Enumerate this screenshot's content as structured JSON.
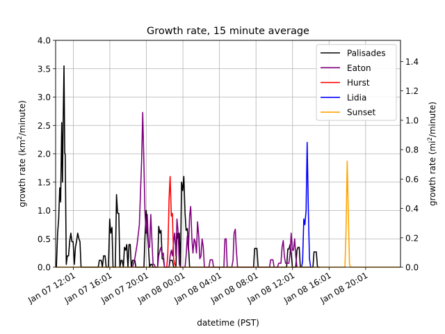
{
  "chart_data": {
    "type": "line",
    "title": "Growth rate, 15 minute average",
    "xlabel": "datetime (PST)",
    "ylabel": "growth rate (km²/minute)",
    "ylabel_right": "growth rate (mi²/minute)",
    "xlim": [
      "2025-01-07T10:05",
      "2025-01-08T23:50"
    ],
    "ylim": [
      0,
      4.0
    ],
    "ylim_right": [
      0,
      1.544
    ],
    "x_ticks": [
      {
        "t": "2025-01-07T12:01",
        "label": "Jan 07 12:01"
      },
      {
        "t": "2025-01-07T16:01",
        "label": "Jan 07 16:01"
      },
      {
        "t": "2025-01-07T20:01",
        "label": "Jan 07 20:01"
      },
      {
        "t": "2025-01-08T00:01",
        "label": "Jan 08 00:01"
      },
      {
        "t": "2025-01-08T04:01",
        "label": "Jan 08 04:01"
      },
      {
        "t": "2025-01-08T08:01",
        "label": "Jan 08 08:01"
      },
      {
        "t": "2025-01-08T12:01",
        "label": "Jan 08 12:01"
      },
      {
        "t": "2025-01-08T16:01",
        "label": "Jan 08 16:01"
      },
      {
        "t": "2025-01-08T20:01",
        "label": "Jan 08 20:01"
      }
    ],
    "y_ticks": [
      {
        "v": 0,
        "label": "0.0"
      },
      {
        "v": 0.5,
        "label": "0.5"
      },
      {
        "v": 1.0,
        "label": "1.0"
      },
      {
        "v": 1.5,
        "label": "1.5"
      },
      {
        "v": 2.0,
        "label": "2.0"
      },
      {
        "v": 2.5,
        "label": "2.5"
      },
      {
        "v": 3.0,
        "label": "3.0"
      },
      {
        "v": 3.5,
        "label": "3.5"
      },
      {
        "v": 4.0,
        "label": "4.0"
      }
    ],
    "y_ticks_right": [
      {
        "v": 0,
        "label": "0.0"
      },
      {
        "v": 0.2,
        "label": "0.2"
      },
      {
        "v": 0.4,
        "label": "0.4"
      },
      {
        "v": 0.6,
        "label": "0.6"
      },
      {
        "v": 0.8,
        "label": "0.8"
      },
      {
        "v": 1.0,
        "label": "1.0"
      },
      {
        "v": 1.2,
        "label": "1.2"
      },
      {
        "v": 1.4,
        "label": "1.4"
      }
    ],
    "grid": true,
    "legend_position": "top-right",
    "series": [
      {
        "name": "Palisades",
        "color": "#000000",
        "points": [
          [
            "2025-01-07T10:10",
            0
          ],
          [
            "2025-01-07T10:18",
            0.6
          ],
          [
            "2025-01-07T10:25",
            0.85
          ],
          [
            "2025-01-07T10:32",
            1.4
          ],
          [
            "2025-01-07T10:38",
            1.15
          ],
          [
            "2025-01-07T10:45",
            2.55
          ],
          [
            "2025-01-07T10:50",
            1.5
          ],
          [
            "2025-01-07T10:55",
            2.65
          ],
          [
            "2025-01-07T11:00",
            3.55
          ],
          [
            "2025-01-07T11:05",
            2.0
          ],
          [
            "2025-01-07T11:08",
            2.0
          ],
          [
            "2025-01-07T11:15",
            0.05
          ],
          [
            "2025-01-07T11:22",
            0.2
          ],
          [
            "2025-01-07T11:30",
            0.2
          ],
          [
            "2025-01-07T11:37",
            0.45
          ],
          [
            "2025-01-07T11:45",
            0.6
          ],
          [
            "2025-01-07T11:52",
            0.45
          ],
          [
            "2025-01-07T12:00",
            0.45
          ],
          [
            "2025-01-07T12:08",
            0.05
          ],
          [
            "2025-01-07T12:15",
            0.35
          ],
          [
            "2025-01-07T12:22",
            0.45
          ],
          [
            "2025-01-07T12:30",
            0.6
          ],
          [
            "2025-01-07T12:38",
            0.5
          ],
          [
            "2025-01-07T12:45",
            0.45
          ],
          [
            "2025-01-07T12:52",
            0
          ],
          [
            "2025-01-07T14:45",
            0
          ],
          [
            "2025-01-07T14:52",
            0.12
          ],
          [
            "2025-01-07T15:05",
            0.12
          ],
          [
            "2025-01-07T15:12",
            0
          ],
          [
            "2025-01-07T15:20",
            0.2
          ],
          [
            "2025-01-07T15:30",
            0.2
          ],
          [
            "2025-01-07T15:37",
            0
          ],
          [
            "2025-01-07T15:52",
            0
          ],
          [
            "2025-01-07T16:00",
            0.85
          ],
          [
            "2025-01-07T16:07",
            0.6
          ],
          [
            "2025-01-07T16:15",
            0.7
          ],
          [
            "2025-01-07T16:22",
            0
          ],
          [
            "2025-01-07T16:37",
            0
          ],
          [
            "2025-01-07T16:45",
            1.28
          ],
          [
            "2025-01-07T16:52",
            0.95
          ],
          [
            "2025-01-07T17:00",
            0.95
          ],
          [
            "2025-01-07T17:07",
            0
          ],
          [
            "2025-01-07T17:15",
            0.12
          ],
          [
            "2025-01-07T17:22",
            0.12
          ],
          [
            "2025-01-07T17:30",
            0
          ],
          [
            "2025-01-07T17:37",
            0.35
          ],
          [
            "2025-01-07T17:45",
            0.3
          ],
          [
            "2025-01-07T17:52",
            0.4
          ],
          [
            "2025-01-07T18:00",
            0
          ],
          [
            "2025-01-07T18:07",
            0.4
          ],
          [
            "2025-01-07T18:15",
            0.4
          ],
          [
            "2025-01-07T18:22",
            0
          ],
          [
            "2025-01-07T18:30",
            0.12
          ],
          [
            "2025-01-07T18:45",
            0.12
          ],
          [
            "2025-01-07T18:52",
            0
          ],
          [
            "2025-01-07T19:45",
            0
          ],
          [
            "2025-01-07T19:52",
            0.55
          ],
          [
            "2025-01-07T20:00",
            1.0
          ],
          [
            "2025-01-07T20:07",
            0.6
          ],
          [
            "2025-01-07T20:15",
            0.35
          ],
          [
            "2025-01-07T20:22",
            0
          ],
          [
            "2025-01-07T20:30",
            0.05
          ],
          [
            "2025-01-07T20:37",
            0.05
          ],
          [
            "2025-01-07T20:45",
            0
          ],
          [
            "2025-01-07T21:15",
            0
          ],
          [
            "2025-01-07T21:22",
            0.72
          ],
          [
            "2025-01-07T21:30",
            0.6
          ],
          [
            "2025-01-07T21:37",
            0.65
          ],
          [
            "2025-01-07T21:45",
            0.15
          ],
          [
            "2025-01-07T21:52",
            0.15
          ],
          [
            "2025-01-07T22:00",
            0
          ],
          [
            "2025-01-07T22:30",
            0
          ],
          [
            "2025-01-07T22:37",
            0.12
          ],
          [
            "2025-01-07T22:52",
            0.12
          ],
          [
            "2025-01-07T23:00",
            0
          ],
          [
            "2025-01-07T23:15",
            0
          ],
          [
            "2025-01-07T23:22",
            0.6
          ],
          [
            "2025-01-07T23:30",
            0.5
          ],
          [
            "2025-01-07T23:37",
            0.6
          ],
          [
            "2025-01-07T23:45",
            0
          ],
          [
            "2025-01-07T23:52",
            1.5
          ],
          [
            "2025-01-08T00:00",
            1.35
          ],
          [
            "2025-01-08T00:07",
            1.6
          ],
          [
            "2025-01-08T00:15",
            0.95
          ],
          [
            "2025-01-08T00:22",
            0.65
          ],
          [
            "2025-01-08T00:30",
            0.68
          ],
          [
            "2025-01-08T00:37",
            0.4
          ],
          [
            "2025-01-08T00:45",
            0
          ],
          [
            "2025-01-08T07:45",
            0
          ],
          [
            "2025-01-08T07:52",
            0.33
          ],
          [
            "2025-01-08T08:07",
            0.33
          ],
          [
            "2025-01-08T08:15",
            0
          ],
          [
            "2025-01-08T11:22",
            0
          ],
          [
            "2025-01-08T11:30",
            0.32
          ],
          [
            "2025-01-08T11:37",
            0.32
          ],
          [
            "2025-01-08T11:45",
            0.4
          ],
          [
            "2025-01-08T11:52",
            0.25
          ],
          [
            "2025-01-08T12:00",
            0
          ],
          [
            "2025-01-08T12:22",
            0
          ],
          [
            "2025-01-08T12:30",
            0.3
          ],
          [
            "2025-01-08T12:37",
            0.35
          ],
          [
            "2025-01-08T12:45",
            0.35
          ],
          [
            "2025-01-08T12:52",
            0
          ],
          [
            "2025-01-08T14:15",
            0
          ],
          [
            "2025-01-08T14:22",
            0.27
          ],
          [
            "2025-01-08T14:37",
            0.27
          ],
          [
            "2025-01-08T14:45",
            0
          ],
          [
            "2025-01-08T15:00",
            0
          ]
        ]
      },
      {
        "name": "Eaton",
        "color": "#800080",
        "points": [
          [
            "2025-01-07T18:30",
            0
          ],
          [
            "2025-01-07T18:45",
            0.15
          ],
          [
            "2025-01-07T19:00",
            0.4
          ],
          [
            "2025-01-07T19:15",
            0.75
          ],
          [
            "2025-01-07T19:30",
            1.9
          ],
          [
            "2025-01-07T19:37",
            2.73
          ],
          [
            "2025-01-07T19:45",
            1.8
          ],
          [
            "2025-01-07T19:52",
            0.95
          ],
          [
            "2025-01-07T20:00",
            0.6
          ],
          [
            "2025-01-07T20:07",
            0.93
          ],
          [
            "2025-01-07T20:15",
            0.35
          ],
          [
            "2025-01-07T20:22",
            0.35
          ],
          [
            "2025-01-07T20:30",
            0.93
          ],
          [
            "2025-01-07T20:37",
            0.5
          ],
          [
            "2025-01-07T20:45",
            0.05
          ],
          [
            "2025-01-07T20:52",
            0.05
          ],
          [
            "2025-01-07T21:00",
            0
          ],
          [
            "2025-01-07T21:15",
            0
          ],
          [
            "2025-01-07T21:22",
            0.2
          ],
          [
            "2025-01-07T21:30",
            0.3
          ],
          [
            "2025-01-07T21:37",
            0.35
          ],
          [
            "2025-01-07T21:45",
            0.2
          ],
          [
            "2025-01-07T21:52",
            0.25
          ],
          [
            "2025-01-07T22:00",
            0
          ],
          [
            "2025-01-07T22:30",
            0
          ],
          [
            "2025-01-07T22:37",
            0.2
          ],
          [
            "2025-01-07T22:45",
            0.3
          ],
          [
            "2025-01-07T22:52",
            0.2
          ],
          [
            "2025-01-07T23:00",
            0.45
          ],
          [
            "2025-01-07T23:07",
            0.6
          ],
          [
            "2025-01-07T23:15",
            0.2
          ],
          [
            "2025-01-07T23:22",
            0.85
          ],
          [
            "2025-01-07T23:30",
            0.6
          ],
          [
            "2025-01-07T23:37",
            0.05
          ],
          [
            "2025-01-07T23:45",
            0
          ],
          [
            "2025-01-08T00:15",
            0
          ],
          [
            "2025-01-08T00:22",
            0.2
          ],
          [
            "2025-01-08T00:30",
            0.55
          ],
          [
            "2025-01-08T00:37",
            0.3
          ],
          [
            "2025-01-08T00:45",
            0.9
          ],
          [
            "2025-01-08T00:52",
            1.07
          ],
          [
            "2025-01-08T01:00",
            0.5
          ],
          [
            "2025-01-08T01:07",
            0.25
          ],
          [
            "2025-01-08T01:15",
            0.5
          ],
          [
            "2025-01-08T01:22",
            0.45
          ],
          [
            "2025-01-08T01:30",
            0.25
          ],
          [
            "2025-01-08T01:37",
            0.8
          ],
          [
            "2025-01-08T01:45",
            0.55
          ],
          [
            "2025-01-08T01:52",
            0.15
          ],
          [
            "2025-01-08T02:00",
            0.2
          ],
          [
            "2025-01-08T02:07",
            0.5
          ],
          [
            "2025-01-08T02:15",
            0.35
          ],
          [
            "2025-01-08T02:22",
            0
          ],
          [
            "2025-01-08T02:52",
            0
          ],
          [
            "2025-01-08T03:00",
            0.13
          ],
          [
            "2025-01-08T03:15",
            0.13
          ],
          [
            "2025-01-08T03:22",
            0
          ],
          [
            "2025-01-08T04:30",
            0
          ],
          [
            "2025-01-08T04:37",
            0.5
          ],
          [
            "2025-01-08T04:45",
            0.5
          ],
          [
            "2025-01-08T04:52",
            0
          ],
          [
            "2025-01-08T05:22",
            0
          ],
          [
            "2025-01-08T05:30",
            0.12
          ],
          [
            "2025-01-08T05:37",
            0.6
          ],
          [
            "2025-01-08T05:45",
            0.67
          ],
          [
            "2025-01-08T05:52",
            0.3
          ],
          [
            "2025-01-08T06:00",
            0
          ],
          [
            "2025-01-08T09:30",
            0
          ],
          [
            "2025-01-08T09:37",
            0.13
          ],
          [
            "2025-01-08T09:52",
            0.13
          ],
          [
            "2025-01-08T10:00",
            0
          ],
          [
            "2025-01-08T10:22",
            0
          ],
          [
            "2025-01-08T10:30",
            0.07
          ],
          [
            "2025-01-08T10:45",
            0.07
          ],
          [
            "2025-01-08T10:52",
            0.35
          ],
          [
            "2025-01-08T11:00",
            0.47
          ],
          [
            "2025-01-08T11:07",
            0.2
          ],
          [
            "2025-01-08T11:15",
            0.07
          ],
          [
            "2025-01-08T11:37",
            0.07
          ],
          [
            "2025-01-08T11:45",
            0.25
          ],
          [
            "2025-01-08T11:52",
            0.6
          ],
          [
            "2025-01-08T12:00",
            0.3
          ],
          [
            "2025-01-08T12:07",
            0.3
          ],
          [
            "2025-01-08T12:15",
            0.5
          ],
          [
            "2025-01-08T12:22",
            0.2
          ],
          [
            "2025-01-08T12:30",
            0
          ]
        ]
      },
      {
        "name": "Hurst",
        "color": "#ff0000",
        "points": [
          [
            "2025-01-07T22:15",
            0
          ],
          [
            "2025-01-07T22:22",
            0.25
          ],
          [
            "2025-01-07T22:30",
            1.2
          ],
          [
            "2025-01-07T22:37",
            1.6
          ],
          [
            "2025-01-07T22:45",
            0.9
          ],
          [
            "2025-01-07T22:52",
            0.95
          ],
          [
            "2025-01-07T23:00",
            0.15
          ],
          [
            "2025-01-07T23:07",
            0.05
          ],
          [
            "2025-01-07T23:15",
            0
          ]
        ]
      },
      {
        "name": "Lidia",
        "color": "#0000ff",
        "points": [
          [
            "2025-01-08T13:00",
            0
          ],
          [
            "2025-01-08T13:07",
            0.1
          ],
          [
            "2025-01-08T13:15",
            0.85
          ],
          [
            "2025-01-08T13:22",
            0.75
          ],
          [
            "2025-01-08T13:30",
            1.0
          ],
          [
            "2025-01-08T13:37",
            2.2
          ],
          [
            "2025-01-08T13:45",
            1.0
          ],
          [
            "2025-01-08T13:52",
            0.15
          ],
          [
            "2025-01-08T14:00",
            0
          ]
        ]
      },
      {
        "name": "Sunset",
        "color": "#ffa500",
        "points": [
          [
            "2025-01-07T10:10",
            0
          ],
          [
            "2025-01-08T17:45",
            0
          ],
          [
            "2025-01-08T17:52",
            0.6
          ],
          [
            "2025-01-08T18:00",
            1.87
          ],
          [
            "2025-01-08T18:07",
            1.0
          ],
          [
            "2025-01-08T18:15",
            0.05
          ],
          [
            "2025-01-08T18:22",
            0
          ],
          [
            "2025-01-08T23:50",
            0
          ]
        ]
      }
    ]
  }
}
